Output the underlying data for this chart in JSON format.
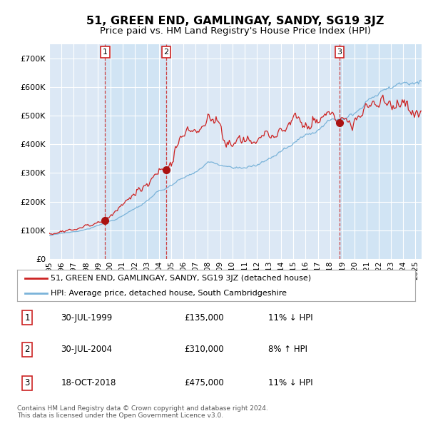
{
  "title": "51, GREEN END, GAMLINGAY, SANDY, SG19 3JZ",
  "subtitle": "Price paid vs. HM Land Registry's House Price Index (HPI)",
  "title_fontsize": 11.5,
  "subtitle_fontsize": 9.5,
  "background_color": "#ffffff",
  "plot_bg_color": "#dce8f5",
  "grid_color": "#ffffff",
  "transactions": [
    {
      "label": "1",
      "date_num": 1999.58,
      "price": 135000
    },
    {
      "label": "2",
      "date_num": 2004.58,
      "price": 310000
    },
    {
      "label": "3",
      "date_num": 2018.79,
      "price": 475000
    }
  ],
  "vline_dates": [
    1999.58,
    2004.58,
    2018.79
  ],
  "ylim": [
    0,
    750000
  ],
  "yticks": [
    0,
    100000,
    200000,
    300000,
    400000,
    500000,
    600000,
    700000
  ],
  "ytick_labels": [
    "£0",
    "£100K",
    "£200K",
    "£300K",
    "£400K",
    "£500K",
    "£600K",
    "£700K"
  ],
  "xlim": [
    1995.0,
    2025.5
  ],
  "hpi_line_color": "#7ab3d9",
  "price_line_color": "#cc2222",
  "marker_color": "#aa1111",
  "legend_label_price": "51, GREEN END, GAMLINGAY, SANDY, SG19 3JZ (detached house)",
  "legend_label_hpi": "HPI: Average price, detached house, South Cambridgeshire",
  "table_rows": [
    {
      "num": "1",
      "date": "30-JUL-1999",
      "price": "£135,000",
      "hpi": "11% ↓ HPI"
    },
    {
      "num": "2",
      "date": "30-JUL-2004",
      "price": "£310,000",
      "hpi": "8% ↑ HPI"
    },
    {
      "num": "3",
      "date": "18-OCT-2018",
      "price": "£475,000",
      "hpi": "11% ↓ HPI"
    }
  ],
  "footer": "Contains HM Land Registry data © Crown copyright and database right 2024.\nThis data is licensed under the Open Government Licence v3.0."
}
